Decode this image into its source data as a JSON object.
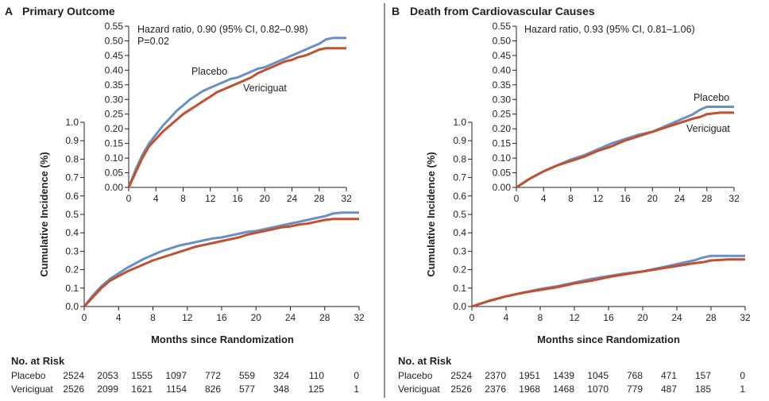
{
  "panels": [
    {
      "letter": "A",
      "title": "Primary Outcome",
      "ylabel": "Cumulative Incidence (%)",
      "xlabel": "Months since Randomization",
      "risk_title": "No. at Risk",
      "annotation": [
        "Hazard ratio, 0.90 (95% CI, 0.82–0.98)",
        "P=0.02"
      ],
      "inset_labels": [
        {
          "text": "Placebo",
          "series": "Placebo"
        },
        {
          "text": "Vericiguat",
          "series": "Vericiguat"
        }
      ],
      "risk_table": {
        "rows": [
          {
            "label": "Placebo",
            "values": [
              "2524",
              "2053",
              "1555",
              "1097",
              "772",
              "559",
              "324",
              "110",
              "0"
            ]
          },
          {
            "label": "Vericiguat",
            "values": [
              "2526",
              "2099",
              "1621",
              "1154",
              "826",
              "577",
              "348",
              "125",
              "1"
            ]
          }
        ]
      }
    },
    {
      "letter": "B",
      "title": "Death from Cardiovascular Causes",
      "ylabel": "Cumulative Incidence (%)",
      "xlabel": "Months since Randomization",
      "risk_title": "No. at Risk",
      "annotation": [
        "Hazard ratio, 0.93 (95% CI, 0.81–1.06)"
      ],
      "inset_labels": [
        {
          "text": "Placebo",
          "series": "Placebo"
        },
        {
          "text": "Vericiguat",
          "series": "Vericiguat"
        }
      ],
      "risk_table": {
        "rows": [
          {
            "label": "Placebo",
            "values": [
              "2524",
              "2370",
              "1951",
              "1439",
              "1045",
              "768",
              "471",
              "157",
              "0"
            ]
          },
          {
            "label": "Vericiguat",
            "values": [
              "2526",
              "2376",
              "1968",
              "1468",
              "1070",
              "779",
              "487",
              "185",
              "1"
            ]
          }
        ]
      }
    }
  ],
  "chart_data": [
    {
      "type": "line",
      "panel": "A",
      "title": "Primary Outcome",
      "xlabel": "Months since Randomization",
      "ylabel": "Cumulative Incidence (%)",
      "xlim": [
        0,
        32
      ],
      "ylim": [
        0,
        1.0
      ],
      "xticks": [
        0,
        4,
        8,
        12,
        16,
        20,
        24,
        28,
        32
      ],
      "yticks": [
        "0.0",
        "0.1",
        "0.2",
        "0.3",
        "0.4",
        "0.5",
        "0.6",
        "0.7",
        "0.8",
        "0.9",
        "1.0"
      ],
      "inset": {
        "xlim": [
          0,
          32
        ],
        "ylim": [
          0,
          0.55
        ],
        "xticks": [
          0,
          4,
          8,
          12,
          16,
          20,
          24,
          28,
          32
        ],
        "yticks": [
          "0.00",
          "0.05",
          "0.10",
          "0.15",
          "0.20",
          "0.25",
          "0.30",
          "0.35",
          "0.40",
          "0.45",
          "0.50",
          "0.55"
        ]
      },
      "series": [
        {
          "name": "Placebo",
          "color": "#6a8fc6",
          "x": [
            0,
            1,
            2,
            3,
            4,
            5,
            6,
            7,
            8,
            9,
            10,
            11,
            12,
            13,
            14,
            15,
            16,
            17,
            18,
            19,
            20,
            21,
            22,
            23,
            24,
            25,
            26,
            27,
            28,
            29,
            30,
            31,
            32
          ],
          "y": [
            0,
            0.06,
            0.11,
            0.15,
            0.18,
            0.21,
            0.235,
            0.26,
            0.28,
            0.3,
            0.315,
            0.33,
            0.34,
            0.35,
            0.36,
            0.37,
            0.375,
            0.385,
            0.395,
            0.405,
            0.41,
            0.42,
            0.43,
            0.44,
            0.45,
            0.46,
            0.47,
            0.48,
            0.49,
            0.505,
            0.51,
            0.51,
            0.51
          ]
        },
        {
          "name": "Vericiguat",
          "color": "#c1502e",
          "x": [
            0,
            1,
            2,
            3,
            4,
            5,
            6,
            7,
            8,
            9,
            10,
            11,
            12,
            13,
            14,
            15,
            16,
            17,
            18,
            19,
            20,
            21,
            22,
            23,
            24,
            25,
            26,
            27,
            28,
            29,
            30,
            31,
            32
          ],
          "y": [
            0,
            0.05,
            0.1,
            0.14,
            0.165,
            0.19,
            0.21,
            0.23,
            0.25,
            0.265,
            0.28,
            0.295,
            0.31,
            0.325,
            0.335,
            0.345,
            0.355,
            0.365,
            0.375,
            0.39,
            0.4,
            0.41,
            0.42,
            0.43,
            0.435,
            0.445,
            0.45,
            0.46,
            0.47,
            0.475,
            0.475,
            0.475,
            0.475
          ]
        }
      ]
    },
    {
      "type": "line",
      "panel": "B",
      "title": "Death from Cardiovascular Causes",
      "xlabel": "Months since Randomization",
      "ylabel": "Cumulative Incidence (%)",
      "xlim": [
        0,
        32
      ],
      "ylim": [
        0,
        1.0
      ],
      "xticks": [
        0,
        4,
        8,
        12,
        16,
        20,
        24,
        28,
        32
      ],
      "yticks": [
        "0.0",
        "0.1",
        "0.2",
        "0.3",
        "0.4",
        "0.5",
        "0.6",
        "0.7",
        "0.8",
        "0.9",
        "1.0"
      ],
      "inset": {
        "xlim": [
          0,
          32
        ],
        "ylim": [
          0,
          0.55
        ],
        "xticks": [
          0,
          4,
          8,
          12,
          16,
          20,
          24,
          28,
          32
        ],
        "yticks": [
          "0.00",
          "0.05",
          "0.10",
          "0.15",
          "0.20",
          "0.25",
          "0.30",
          "0.35",
          "0.40",
          "0.45",
          "0.50",
          "0.55"
        ]
      },
      "series": [
        {
          "name": "Placebo",
          "color": "#6a8fc6",
          "x": [
            0,
            2,
            4,
            6,
            8,
            10,
            12,
            14,
            16,
            18,
            20,
            22,
            24,
            26,
            27,
            28,
            30,
            32
          ],
          "y": [
            0,
            0.03,
            0.055,
            0.075,
            0.095,
            0.11,
            0.13,
            0.15,
            0.165,
            0.18,
            0.19,
            0.21,
            0.23,
            0.25,
            0.265,
            0.275,
            0.275,
            0.275
          ]
        },
        {
          "name": "Vericiguat",
          "color": "#c1502e",
          "x": [
            0,
            2,
            4,
            6,
            8,
            10,
            12,
            14,
            16,
            18,
            20,
            22,
            24,
            26,
            27,
            28,
            30,
            32
          ],
          "y": [
            0,
            0.03,
            0.055,
            0.075,
            0.09,
            0.105,
            0.125,
            0.14,
            0.16,
            0.175,
            0.19,
            0.205,
            0.22,
            0.235,
            0.24,
            0.25,
            0.255,
            0.255
          ]
        }
      ]
    }
  ]
}
